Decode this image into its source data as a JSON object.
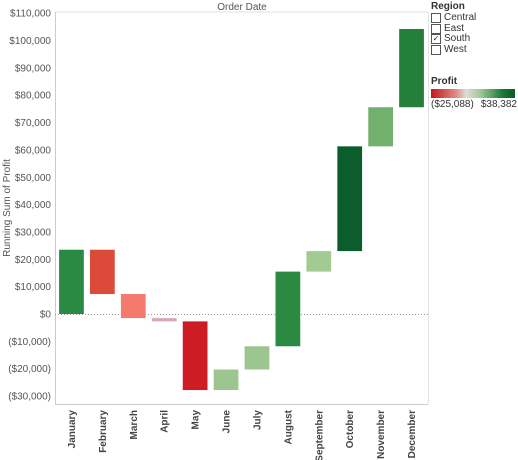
{
  "chart_data": {
    "type": "waterfall",
    "title": "Order Date",
    "ylabel": "Running Sum of Profit",
    "xlabel": "",
    "ylim": [
      -35000,
      110000
    ],
    "yticks": [
      -30000,
      -20000,
      -10000,
      0,
      10000,
      20000,
      30000,
      40000,
      50000,
      60000,
      70000,
      80000,
      90000,
      100000,
      110000
    ],
    "ytick_labels": [
      "($30,000)",
      "($20,000)",
      "($10,000)",
      "$0",
      "$10,000",
      "$20,000",
      "$30,000",
      "$40,000",
      "$50,000",
      "$60,000",
      "$70,000",
      "$80,000",
      "$90,000",
      "$100,000",
      "$110,000"
    ],
    "categories": [
      "January",
      "February",
      "March",
      "April",
      "May",
      "June",
      "July",
      "August",
      "September",
      "October",
      "November",
      "December"
    ],
    "bars": [
      {
        "start": 0,
        "end": 23500,
        "color": "#2a8a41"
      },
      {
        "start": 23500,
        "end": 7300,
        "color": "#dc4a3a"
      },
      {
        "start": 7300,
        "end": -1500,
        "color": "#f47a6e"
      },
      {
        "start": -1500,
        "end": -2700,
        "color": "#d7a9b2"
      },
      {
        "start": -2700,
        "end": -27800,
        "color": "#ce1c24"
      },
      {
        "start": -27800,
        "end": -20300,
        "color": "#9cc590"
      },
      {
        "start": -20300,
        "end": -11800,
        "color": "#9cc590"
      },
      {
        "start": -11800,
        "end": 15500,
        "color": "#2a8a41"
      },
      {
        "start": 15500,
        "end": 23000,
        "color": "#a2cb93"
      },
      {
        "start": 23000,
        "end": 61300,
        "color": "#0b5e2b"
      },
      {
        "start": 61300,
        "end": 75600,
        "color": "#72b06d"
      },
      {
        "start": 75600,
        "end": 104200,
        "color": "#247f3b"
      }
    ],
    "grid": false
  },
  "legend": {
    "region_title": "Region",
    "regions": [
      {
        "label": "Central",
        "checked": false
      },
      {
        "label": "East",
        "checked": false
      },
      {
        "label": "South",
        "checked": true
      },
      {
        "label": "West",
        "checked": false
      }
    ],
    "check_glyph": "✓",
    "profit_title": "Profit",
    "profit_min": "($25,088)",
    "profit_max": "$38,382"
  },
  "colors": {
    "axis": "#cccccc",
    "zero_line": "#999999",
    "gradient_low": "#c3161d",
    "gradient_high": "#0b5a28"
  }
}
